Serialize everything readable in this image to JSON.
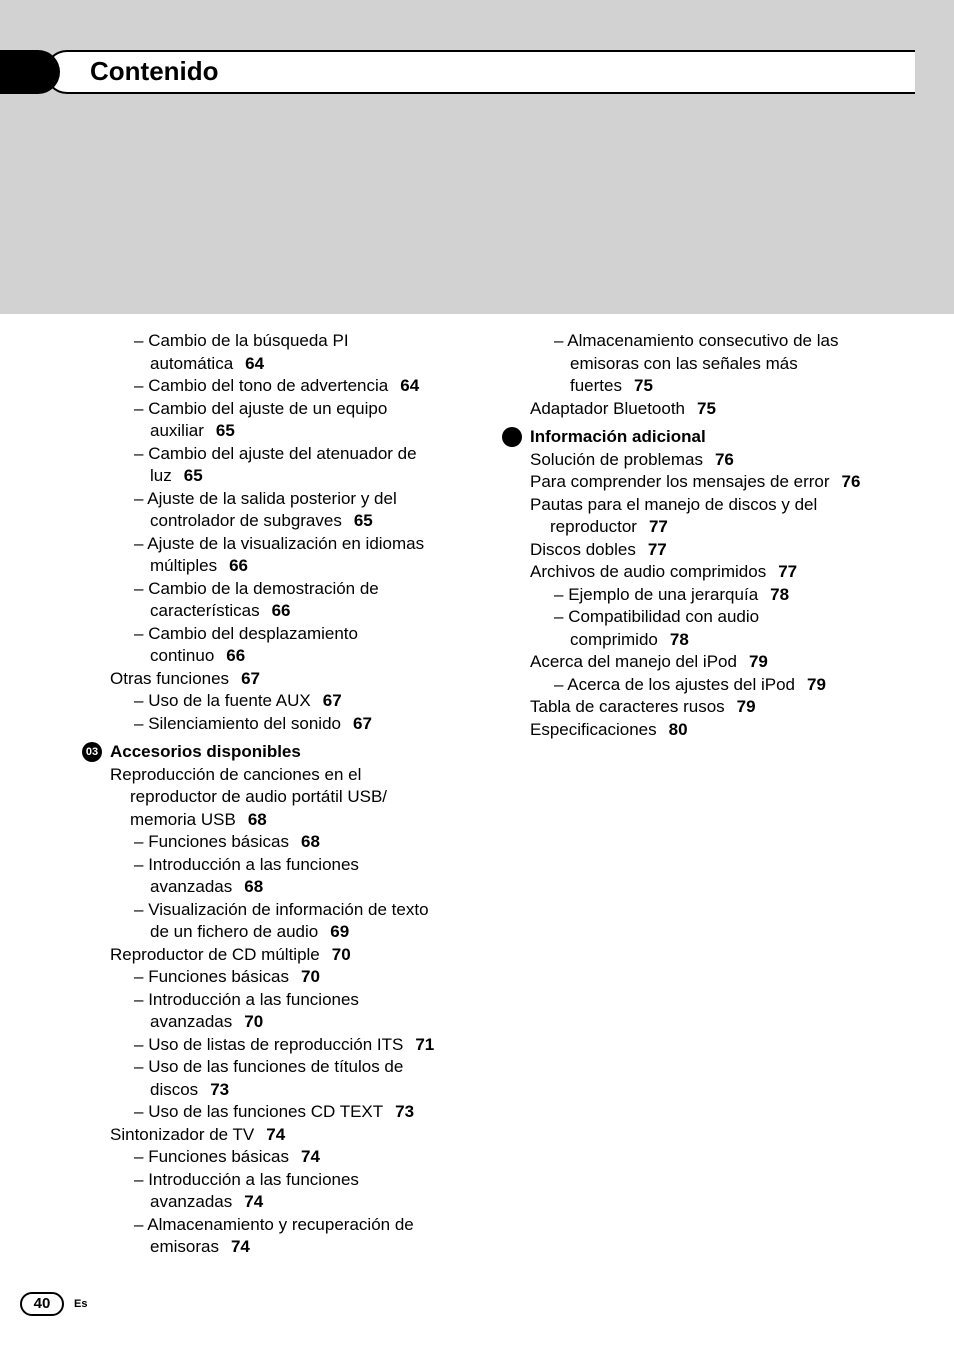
{
  "header": {
    "title": "Contenido"
  },
  "footer": {
    "page": "40",
    "lang": "Es"
  },
  "col_left": {
    "intro_sub": [
      {
        "t": "Cambio de la búsqueda PI",
        "cont": "automática",
        "pg": "64"
      },
      {
        "t": "Cambio del tono de advertencia",
        "pg": "64"
      },
      {
        "t": "Cambio del ajuste de un equipo",
        "cont": "auxiliar",
        "pg": "65"
      },
      {
        "t": "Cambio del ajuste del atenuador de",
        "cont": "luz",
        "pg": "65"
      },
      {
        "t": "Ajuste de la salida posterior y del",
        "cont": "controlador de subgraves",
        "pg": "65"
      },
      {
        "t": "Ajuste de la visualización en idiomas",
        "cont": "múltiples",
        "pg": "66"
      },
      {
        "t": "Cambio de la demostración de",
        "cont": "características",
        "pg": "66"
      },
      {
        "t": "Cambio del desplazamiento",
        "cont": "continuo",
        "pg": "66"
      }
    ],
    "otras": {
      "label": "Otras funciones",
      "pg": "67",
      "sub": [
        {
          "t": "Uso de la fuente AUX",
          "pg": "67"
        },
        {
          "t": "Silenciamiento del sonido",
          "pg": "67"
        }
      ]
    },
    "sec03": {
      "num": "03",
      "title": "Accesorios disponibles",
      "items": [
        {
          "l1": "Reproducción de canciones en el",
          "l1b": "reproductor de audio portátil USB/",
          "l1c": "memoria USB",
          "pg": "68",
          "sub": [
            {
              "t": "Funciones básicas",
              "pg": "68"
            },
            {
              "t": "Introducción a las funciones",
              "cont": "avanzadas",
              "pg": "68"
            },
            {
              "t": "Visualización de información de texto",
              "cont": "de un fichero de audio",
              "pg": "69"
            }
          ]
        },
        {
          "l1": "Reproductor de CD múltiple",
          "pg": "70",
          "sub": [
            {
              "t": "Funciones básicas",
              "pg": "70"
            },
            {
              "t": "Introducción a las funciones",
              "cont": "avanzadas",
              "pg": "70"
            },
            {
              "t": "Uso de listas de reproducción ITS",
              "pg": "71"
            },
            {
              "t": "Uso de las funciones de títulos de",
              "cont": "discos",
              "pg": "73"
            },
            {
              "t": "Uso de las funciones CD TEXT",
              "pg": "73"
            }
          ]
        },
        {
          "l1": "Sintonizador de TV",
          "pg": "74",
          "sub": [
            {
              "t": "Funciones básicas",
              "pg": "74"
            },
            {
              "t": "Introducción a las funciones",
              "cont": "avanzadas",
              "pg": "74"
            },
            {
              "t": "Almacenamiento y recuperación de",
              "cont": "emisoras",
              "pg": "74"
            }
          ]
        }
      ]
    }
  },
  "col_right": {
    "cont_sub": [
      {
        "t": "Almacenamiento consecutivo de las",
        "cont": "emisoras con las señales más",
        "cont2": "fuertes",
        "pg": "75"
      }
    ],
    "bt": {
      "label": "Adaptador Bluetooth",
      "pg": "75"
    },
    "info": {
      "title": "Información adicional",
      "items": [
        {
          "t": "Solución de problemas",
          "pg": "76"
        },
        {
          "t": "Para comprender los mensajes de error",
          "pg": "76"
        },
        {
          "t": "Pautas para el manejo de discos y del",
          "cont": "reproductor",
          "pg": "77"
        },
        {
          "t": "Discos dobles",
          "pg": "77"
        },
        {
          "t": "Archivos de audio comprimidos",
          "pg": "77",
          "sub": [
            {
              "t": "Ejemplo de una jerarquía",
              "pg": "78"
            },
            {
              "t": "Compatibilidad con audio",
              "cont": "comprimido",
              "pg": "78"
            }
          ]
        },
        {
          "t": "Acerca del manejo del iPod",
          "pg": "79",
          "sub": [
            {
              "t": "Acerca de los ajustes del iPod",
              "pg": "79"
            }
          ]
        },
        {
          "t": "Tabla de caracteres rusos",
          "pg": "79"
        },
        {
          "t": "Especificaciones",
          "pg": "80"
        }
      ]
    }
  }
}
